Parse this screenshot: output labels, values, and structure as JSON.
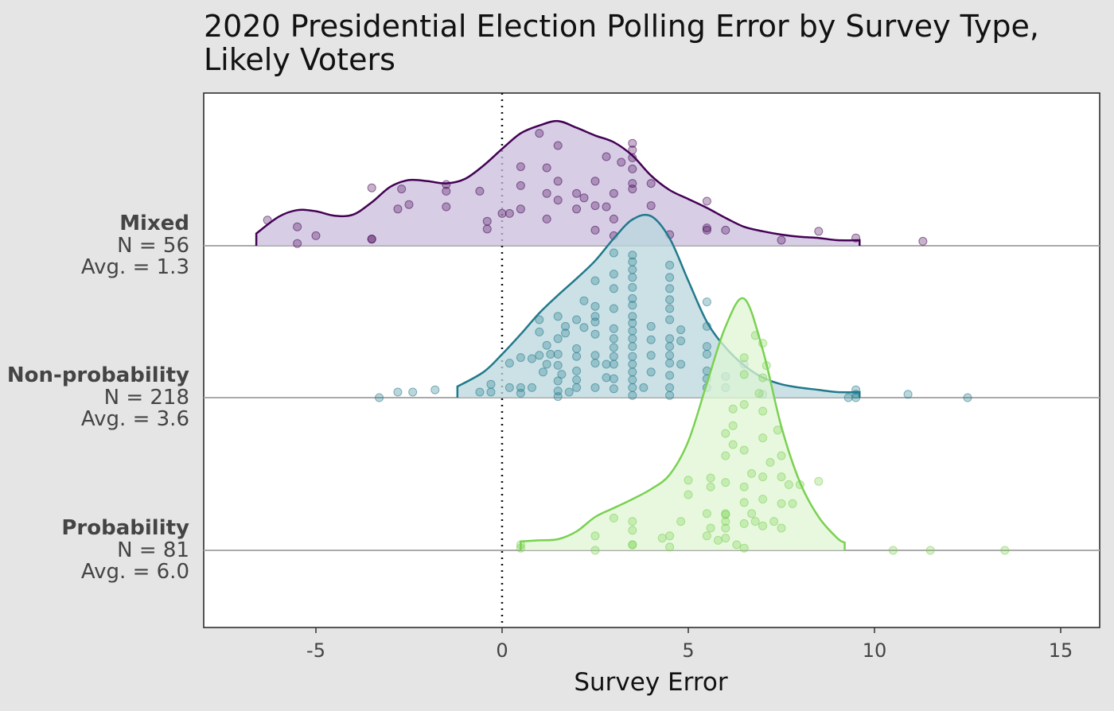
{
  "title_line1": "2020 Presidential Election Polling Error by Survey Type,",
  "title_line2": "Likely Voters",
  "chart_data": {
    "type": "ridgeline",
    "xlabel": "Survey Error",
    "xlim": [
      -8.3,
      15.8
    ],
    "xticks": [
      "-5",
      "0",
      "5",
      "10",
      "15"
    ],
    "xtick_values": [
      -5,
      0,
      5,
      10,
      15
    ],
    "reference_line": 0,
    "grid": false,
    "series": [
      {
        "name": "Mixed",
        "n_label": "N = 56",
        "avg_label": "Avg. = 1.3",
        "line_color": "#440154",
        "fill_color": "#c9bedd",
        "density_x": [
          -6.6,
          -6.0,
          -5.5,
          -5.0,
          -4.5,
          -4.0,
          -3.5,
          -3.0,
          -2.5,
          -2.0,
          -1.5,
          -1.0,
          -0.5,
          0.0,
          0.5,
          1.0,
          1.5,
          2.0,
          2.5,
          3.0,
          3.5,
          4.0,
          4.5,
          5.0,
          5.5,
          6.0,
          6.5,
          7.0,
          7.5,
          8.0,
          8.5,
          9.0,
          9.6
        ],
        "density_y": [
          0.11,
          0.26,
          0.32,
          0.31,
          0.27,
          0.28,
          0.39,
          0.53,
          0.59,
          0.58,
          0.56,
          0.6,
          0.72,
          0.87,
          1.01,
          1.08,
          1.12,
          1.06,
          0.99,
          0.93,
          0.81,
          0.63,
          0.5,
          0.42,
          0.34,
          0.25,
          0.17,
          0.13,
          0.1,
          0.08,
          0.07,
          0.05,
          0.05
        ],
        "points": [
          [
            -6.3,
            0.23
          ],
          [
            -5.5,
            0.17
          ],
          [
            -5.5,
            0.02
          ],
          [
            -5.0,
            0.09
          ],
          [
            -3.5,
            0.52
          ],
          [
            -3.5,
            0.06
          ],
          [
            -3.5,
            0.06
          ],
          [
            -2.8,
            0.33
          ],
          [
            -2.7,
            0.51
          ],
          [
            -2.5,
            0.37
          ],
          [
            -1.5,
            0.55
          ],
          [
            -1.5,
            0.49
          ],
          [
            -1.5,
            0.35
          ],
          [
            -0.6,
            0.49
          ],
          [
            -0.4,
            0.22
          ],
          [
            -0.4,
            0.15
          ],
          [
            0.0,
            0.29
          ],
          [
            0.2,
            0.29
          ],
          [
            0.5,
            0.71
          ],
          [
            0.5,
            0.54
          ],
          [
            0.5,
            0.33
          ],
          [
            1.0,
            1.01
          ],
          [
            1.2,
            0.7
          ],
          [
            1.2,
            0.47
          ],
          [
            1.2,
            0.24
          ],
          [
            1.5,
            0.9
          ],
          [
            1.5,
            0.41
          ],
          [
            1.5,
            0.58
          ],
          [
            2.0,
            0.47
          ],
          [
            2.0,
            0.33
          ],
          [
            2.2,
            0.43
          ],
          [
            2.5,
            0.36
          ],
          [
            2.5,
            0.14
          ],
          [
            2.8,
            0.8
          ],
          [
            2.8,
            0.35
          ],
          [
            2.5,
            0.58
          ],
          [
            3.0,
            0.47
          ],
          [
            3.0,
            0.24
          ],
          [
            3.0,
            0.09
          ],
          [
            3.5,
            0.86
          ],
          [
            3.5,
            0.79
          ],
          [
            3.5,
            0.69
          ],
          [
            3.5,
            0.92
          ],
          [
            3.2,
            0.75
          ],
          [
            3.5,
            0.56
          ],
          [
            3.5,
            0.51
          ],
          [
            4.0,
            0.56
          ],
          [
            4.0,
            0.36
          ],
          [
            4.5,
            0.1
          ],
          [
            5.5,
            0.4
          ],
          [
            5.5,
            0.16
          ],
          [
            5.5,
            0.14
          ],
          [
            6.0,
            0.14
          ],
          [
            7.5,
            0.05
          ],
          [
            8.5,
            0.13
          ],
          [
            9.5,
            0.07
          ],
          [
            11.3,
            0.04
          ]
        ]
      },
      {
        "name": "Non-probability",
        "n_label": "N = 218",
        "avg_label": "Avg. = 3.6",
        "line_color": "#21798c",
        "fill_color": "#b9d7de",
        "density_x": [
          -1.2,
          -0.5,
          0.0,
          0.5,
          1.0,
          1.5,
          2.0,
          2.5,
          3.0,
          3.5,
          4.0,
          4.5,
          5.0,
          5.5,
          6.0,
          6.5,
          7.0,
          7.5,
          8.0,
          8.5,
          9.0,
          9.6
        ],
        "density_y": [
          0.1,
          0.23,
          0.39,
          0.57,
          0.76,
          0.92,
          1.07,
          1.23,
          1.43,
          1.6,
          1.63,
          1.43,
          1.05,
          0.68,
          0.45,
          0.29,
          0.18,
          0.12,
          0.09,
          0.07,
          0.05,
          0.05
        ],
        "points": [
          [
            -3.3,
            0.0
          ],
          [
            -2.8,
            0.05
          ],
          [
            -2.4,
            0.05
          ],
          [
            -1.8,
            0.07
          ],
          [
            -0.6,
            0.05
          ],
          [
            -0.3,
            0.12
          ],
          [
            -0.3,
            0.05
          ],
          [
            0.2,
            0.31
          ],
          [
            0.2,
            0.09
          ],
          [
            0.5,
            0.36
          ],
          [
            0.5,
            0.04
          ],
          [
            0.5,
            0.09
          ],
          [
            0.8,
            0.35
          ],
          [
            0.8,
            0.09
          ],
          [
            1.0,
            0.38
          ],
          [
            1.0,
            0.7
          ],
          [
            1.0,
            0.59
          ],
          [
            1.1,
            0.23
          ],
          [
            1.2,
            0.47
          ],
          [
            1.2,
            0.3
          ],
          [
            1.3,
            0.39
          ],
          [
            1.5,
            0.73
          ],
          [
            1.5,
            0.53
          ],
          [
            1.5,
            0.39
          ],
          [
            1.5,
            0.15
          ],
          [
            1.5,
            0.06
          ],
          [
            1.5,
            0.01
          ],
          [
            1.5,
            0.29
          ],
          [
            1.6,
            0.21
          ],
          [
            1.7,
            0.58
          ],
          [
            1.7,
            0.64
          ],
          [
            1.8,
            0.05
          ],
          [
            2.0,
            0.7
          ],
          [
            2.0,
            0.44
          ],
          [
            2.0,
            0.16
          ],
          [
            2.0,
            0.09
          ],
          [
            2.0,
            0.37
          ],
          [
            2.0,
            0.24
          ],
          [
            2.2,
            0.87
          ],
          [
            2.2,
            0.63
          ],
          [
            2.5,
            1.05
          ],
          [
            2.5,
            0.82
          ],
          [
            2.5,
            0.73
          ],
          [
            2.5,
            0.57
          ],
          [
            2.5,
            0.38
          ],
          [
            2.5,
            0.31
          ],
          [
            2.5,
            0.09
          ],
          [
            2.5,
            0.68
          ],
          [
            2.8,
            0.3
          ],
          [
            2.8,
            0.18
          ],
          [
            3.0,
            1.3
          ],
          [
            3.0,
            0.98
          ],
          [
            3.0,
            0.8
          ],
          [
            3.0,
            0.62
          ],
          [
            3.0,
            0.53
          ],
          [
            3.0,
            0.45
          ],
          [
            3.0,
            0.37
          ],
          [
            3.0,
            0.3
          ],
          [
            3.0,
            0.17
          ],
          [
            3.0,
            0.08
          ],
          [
            3.0,
            1.11
          ],
          [
            3.5,
            1.28
          ],
          [
            3.5,
            1.22
          ],
          [
            3.5,
            1.15
          ],
          [
            3.5,
            1.08
          ],
          [
            3.5,
            0.99
          ],
          [
            3.5,
            0.89
          ],
          [
            3.5,
            0.83
          ],
          [
            3.5,
            0.73
          ],
          [
            3.5,
            0.67
          ],
          [
            3.5,
            0.6
          ],
          [
            3.5,
            0.53
          ],
          [
            3.5,
            0.46
          ],
          [
            3.5,
            0.37
          ],
          [
            3.5,
            0.3
          ],
          [
            3.5,
            0.23
          ],
          [
            3.5,
            0.16
          ],
          [
            3.5,
            0.09
          ],
          [
            3.5,
            0.02
          ],
          [
            3.8,
            0.09
          ],
          [
            4.0,
            0.64
          ],
          [
            4.0,
            0.52
          ],
          [
            4.0,
            0.38
          ],
          [
            4.0,
            0.23
          ],
          [
            4.5,
            1.19
          ],
          [
            4.5,
            1.08
          ],
          [
            4.5,
            0.98
          ],
          [
            4.5,
            0.88
          ],
          [
            4.5,
            0.8
          ],
          [
            4.5,
            0.7
          ],
          [
            4.5,
            0.53
          ],
          [
            4.5,
            0.46
          ],
          [
            4.5,
            0.38
          ],
          [
            4.5,
            0.31
          ],
          [
            4.5,
            0.2
          ],
          [
            4.5,
            0.09
          ],
          [
            4.5,
            0.02
          ],
          [
            4.8,
            0.3
          ],
          [
            4.8,
            0.51
          ],
          [
            4.8,
            0.61
          ],
          [
            5.5,
            0.86
          ],
          [
            5.5,
            0.64
          ],
          [
            5.5,
            0.46
          ],
          [
            5.5,
            0.39
          ],
          [
            5.5,
            0.24
          ],
          [
            5.5,
            0.17
          ],
          [
            5.5,
            0.09
          ],
          [
            6.0,
            0.19
          ],
          [
            6.0,
            0.09
          ],
          [
            6.5,
            0.3
          ],
          [
            7.0,
            0.03
          ],
          [
            9.3,
            0.0
          ],
          [
            9.5,
            0.07
          ],
          [
            9.5,
            0.03
          ],
          [
            9.5,
            0.0
          ],
          [
            10.9,
            0.03
          ],
          [
            12.5,
            0.0
          ]
        ]
      },
      {
        "name": "Probability",
        "n_label": "N = 81",
        "avg_label": "Avg. = 6.0",
        "line_color": "#7ad151",
        "fill_color": "#dff5d4",
        "density_x": [
          0.5,
          1.0,
          1.5,
          2.0,
          2.5,
          3.0,
          3.5,
          4.0,
          4.5,
          5.0,
          5.5,
          6.0,
          6.5,
          7.0,
          7.5,
          8.0,
          8.5,
          9.0,
          9.2
        ],
        "density_y": [
          0.08,
          0.09,
          0.1,
          0.17,
          0.3,
          0.38,
          0.46,
          0.55,
          0.68,
          0.98,
          1.5,
          2.01,
          2.26,
          1.8,
          1.11,
          0.61,
          0.3,
          0.11,
          0.07
        ],
        "points": [
          [
            0.5,
            0.05
          ],
          [
            0.5,
            0.02
          ],
          [
            2.5,
            0.0
          ],
          [
            2.5,
            0.13
          ],
          [
            3.0,
            0.29
          ],
          [
            3.5,
            0.26
          ],
          [
            3.5,
            0.18
          ],
          [
            3.5,
            0.05
          ],
          [
            3.5,
            0.05
          ],
          [
            4.3,
            0.11
          ],
          [
            4.5,
            0.03
          ],
          [
            4.5,
            0.13
          ],
          [
            4.8,
            0.26
          ],
          [
            5.0,
            0.63
          ],
          [
            5.0,
            0.5
          ],
          [
            5.5,
            0.33
          ],
          [
            5.5,
            0.13
          ],
          [
            5.6,
            0.57
          ],
          [
            5.6,
            0.65
          ],
          [
            5.8,
            0.09
          ],
          [
            6.0,
            0.11
          ],
          [
            6.0,
            0.26
          ],
          [
            6.0,
            0.32
          ],
          [
            6.0,
            0.33
          ],
          [
            6.0,
            0.2
          ],
          [
            6.0,
            0.61
          ],
          [
            6.0,
            0.85
          ],
          [
            6.0,
            1.05
          ],
          [
            6.2,
            0.95
          ],
          [
            6.2,
            1.27
          ],
          [
            6.2,
            1.12
          ],
          [
            6.5,
            0.43
          ],
          [
            6.5,
            0.02
          ],
          [
            6.5,
            0.24
          ],
          [
            6.5,
            0.57
          ],
          [
            6.5,
            0.9
          ],
          [
            6.5,
            1.31
          ],
          [
            6.5,
            1.58
          ],
          [
            6.5,
            1.73
          ],
          [
            6.7,
            0.33
          ],
          [
            6.8,
            0.26
          ],
          [
            7.0,
            0.22
          ],
          [
            7.0,
            0.46
          ],
          [
            7.0,
            0.66
          ],
          [
            7.0,
            1.01
          ],
          [
            7.0,
            1.25
          ],
          [
            7.0,
            1.55
          ],
          [
            7.0,
            1.86
          ],
          [
            7.3,
            0.26
          ],
          [
            7.5,
            0.2
          ],
          [
            7.5,
            0.42
          ],
          [
            7.5,
            0.66
          ],
          [
            7.5,
            0.85
          ],
          [
            7.7,
            0.59
          ],
          [
            8.0,
            0.59
          ],
          [
            8.5,
            0.62
          ],
          [
            10.5,
            0.0
          ],
          [
            11.5,
            0.0
          ],
          [
            13.5,
            0.0
          ],
          [
            5.6,
            0.2
          ],
          [
            6.8,
            1.93
          ],
          [
            7.1,
            1.66
          ],
          [
            6.3,
            0.05
          ],
          [
            6.7,
            0.69
          ],
          [
            7.2,
            0.79
          ],
          [
            7.8,
            0.42
          ],
          [
            6.9,
            1.41
          ],
          [
            7.4,
            1.08
          ]
        ]
      }
    ]
  }
}
